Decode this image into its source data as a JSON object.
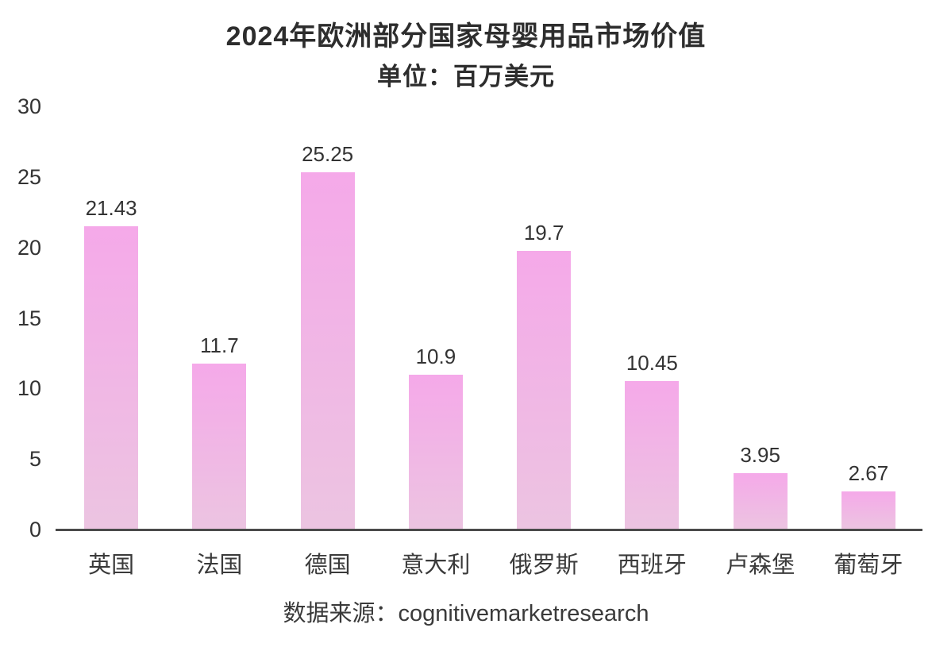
{
  "chart_data": {
    "type": "bar",
    "title": "2024年欧洲部分国家母婴用品市场价值",
    "subtitle": "单位：百万美元",
    "categories": [
      "英国",
      "法国",
      "德国",
      "意大利",
      "俄罗斯",
      "西班牙",
      "卢森堡",
      "葡萄牙"
    ],
    "values": [
      21.43,
      11.7,
      25.25,
      10.9,
      19.7,
      10.45,
      3.95,
      2.67
    ],
    "value_labels": [
      "21.43",
      "11.7",
      "25.25",
      "10.9",
      "19.7",
      "10.45",
      "3.95",
      "2.67"
    ],
    "ylim": [
      0,
      30
    ],
    "yticks": [
      0,
      5,
      10,
      15,
      20,
      25,
      30
    ],
    "grid": false,
    "legend": "none",
    "source": "数据来源：cognitivemarketresearch",
    "colors": {
      "bar_gradient_top": "#f5a9e9",
      "bar_gradient_bottom": "#ecc4e1",
      "axis_line": "#4a4a4a",
      "text": "#333333"
    }
  }
}
